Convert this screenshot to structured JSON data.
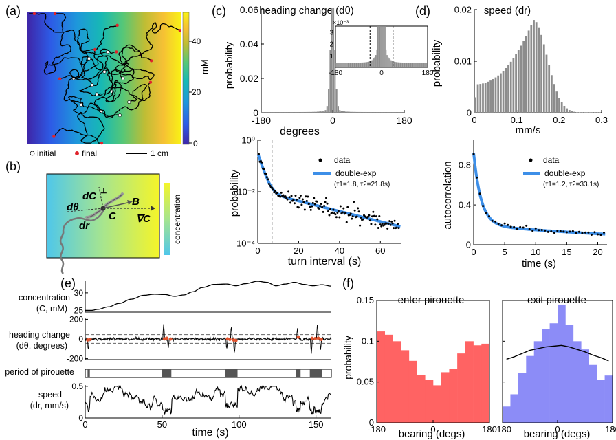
{
  "panel_letters": {
    "a": "(a)",
    "b": "(b)",
    "c": "(c)",
    "d": "(d)",
    "e": "(e)",
    "f": "(f)"
  },
  "colors": {
    "hist_gray": "#8c8c8c",
    "fit_blue": "#3d8fe8",
    "enter_red": "#ff6363",
    "exit_blue": "#8c8cf7",
    "pir_dot": "#e0522d"
  },
  "panel_a": {
    "colorbar_label": "mM",
    "colorbar_ticks": [
      "40",
      "20",
      "0"
    ],
    "legend_initial": "initial",
    "legend_final": "final",
    "scalebar_label": "1 cm",
    "colormap": "parula"
  },
  "panel_b": {
    "label_dC": "dC",
    "label_dC_sup": "⊥",
    "label_dtheta": "dθ",
    "label_dr": "dr",
    "label_C": "C",
    "label_B": "B",
    "label_gradC": "∇C",
    "colorbar_label": "concentration"
  },
  "chart_data": [
    {
      "id": "c_top",
      "type": "bar",
      "title": "heading change (dθ)",
      "xlabel": "degrees",
      "ylabel": "probability",
      "xticks": [
        "-180",
        "0",
        "180"
      ],
      "yticks": [
        "0",
        "0.02",
        "0.04",
        "0.06"
      ],
      "xlim": [
        -180,
        180
      ],
      "ylim": [
        0,
        0.06
      ],
      "inset": {
        "scale_label": "×10⁻³",
        "xticks": [
          "-180",
          "0",
          "180"
        ],
        "yticks": [
          "1",
          "2",
          "3"
        ],
        "xlim": [
          -180,
          180
        ],
        "ylim": [
          0,
          0.0035
        ],
        "dashed_lines": [
          -45,
          45
        ]
      }
    },
    {
      "id": "c_bottom",
      "type": "scatter",
      "xlabel": "turn interval (s)",
      "ylabel": "probability",
      "yscale": "log",
      "xticks": [
        "0",
        "20",
        "40",
        "60"
      ],
      "yticks": [
        "10⁰",
        "10⁻²",
        "10⁻⁴"
      ],
      "xlim": [
        0,
        70
      ],
      "ylim_log10": [
        -4,
        0
      ],
      "dashed_x": 7,
      "legend": [
        "data",
        "double-exp"
      ],
      "fit_params": "(τ1=1.8, τ2=21.8s)",
      "fit": {
        "a1": 0.6,
        "tau1": 1.8,
        "a2": 0.045,
        "tau2": 21.8
      }
    },
    {
      "id": "d_top",
      "type": "bar",
      "title": "speed (dr)",
      "xlabel": "mm/s",
      "ylabel": "probability",
      "xticks": [
        "0",
        "0.1",
        "0.2",
        "0.3"
      ],
      "yticks": [
        "0",
        "0.01",
        "0.02"
      ],
      "xlim": [
        0,
        0.3
      ],
      "ylim": [
        0,
        0.02
      ]
    },
    {
      "id": "d_bottom",
      "type": "scatter",
      "xlabel": "time (s)",
      "ylabel": "autocorrelation",
      "xticks": [
        "0",
        "5",
        "10",
        "15",
        "20"
      ],
      "yticks": [
        "0",
        "0.4",
        "0.8"
      ],
      "xlim": [
        0,
        21.5
      ],
      "ylim": [
        0,
        1.05
      ],
      "legend": [
        "data",
        "double-exp"
      ],
      "fit_params": "(τ1=1.2, τ2=33.1s)",
      "fit": {
        "a1": 0.72,
        "tau1": 1.2,
        "a2": 0.28,
        "tau2": 33.1
      }
    },
    {
      "id": "e",
      "type": "line",
      "xlabel": "time (s)",
      "xticks": [
        "0",
        "50",
        "100",
        "150"
      ],
      "xlim": [
        0,
        160
      ],
      "rows": [
        {
          "label": "concentration",
          "label2": "(C, mM)",
          "yticks": [
            "30",
            "25"
          ],
          "ylim": [
            24.5,
            33.5
          ]
        },
        {
          "label": "heading change",
          "label2": "(dθ, degrees)",
          "yticks": [
            "200",
            "0",
            "-200"
          ],
          "ylim": [
            -210,
            210
          ],
          "dashed": [
            45,
            -45
          ]
        },
        {
          "label": "period of pirouette",
          "periods": [
            [
              1.5,
              3
            ],
            [
              50,
              56
            ],
            [
              91,
              99
            ],
            [
              137,
              140
            ],
            [
              146,
              154
            ]
          ]
        },
        {
          "label": "speed",
          "label2": "(dr, mm/s)",
          "yticks": [
            "0.5",
            "0"
          ],
          "ylim": [
            0,
            0.52
          ]
        }
      ],
      "concentration_keypoints": [
        [
          0,
          25
        ],
        [
          4,
          25
        ],
        [
          8,
          25.3
        ],
        [
          15,
          26
        ],
        [
          22,
          27
        ],
        [
          30,
          28.2
        ],
        [
          38,
          29.3
        ],
        [
          45,
          29.6
        ],
        [
          52,
          29.5
        ],
        [
          58,
          29
        ],
        [
          64,
          29.4
        ],
        [
          70,
          30.3
        ],
        [
          76,
          31.5
        ],
        [
          84,
          32.4
        ],
        [
          92,
          32.5
        ],
        [
          98,
          32
        ],
        [
          104,
          32.6
        ],
        [
          112,
          33.3
        ],
        [
          118,
          33
        ],
        [
          124,
          32
        ],
        [
          130,
          32.5
        ],
        [
          136,
          33
        ],
        [
          142,
          32.4
        ],
        [
          148,
          32
        ],
        [
          154,
          32.3
        ],
        [
          160,
          31.9
        ]
      ]
    },
    {
      "id": "f_left",
      "type": "bar",
      "title": "enter pirouette",
      "xlabel": "bearing (degs)",
      "ylabel": "probability",
      "xticks": [
        "-180",
        "0",
        "180"
      ],
      "yticks": [
        "0",
        "0.05",
        "0.1",
        "0.15"
      ],
      "xlim": [
        -180,
        180
      ],
      "ylim": [
        0,
        0.15
      ],
      "values": [
        0.112,
        0.108,
        0.1,
        0.089,
        0.076,
        0.059,
        0.053,
        0.046,
        0.062,
        0.066,
        0.085,
        0.1,
        0.095,
        0.097
      ]
    },
    {
      "id": "f_right",
      "type": "bar",
      "title": "exit pirouette",
      "xlabel": "bearing (degs)",
      "xticks": [
        "-180",
        "0",
        "180"
      ],
      "yticks": [
        "0.15",
        "0.1",
        "0.05",
        "0"
      ],
      "xlim": [
        -180,
        180
      ],
      "ylim": [
        0,
        0.15
      ],
      "values": [
        0.02,
        0.035,
        0.061,
        0.082,
        0.1,
        0.115,
        0.122,
        0.145,
        0.12,
        0.1,
        0.09,
        0.071,
        0.053,
        0.058
      ],
      "line": [
        0.078,
        0.081,
        0.085,
        0.089,
        0.091,
        0.093,
        0.094,
        0.095,
        0.093,
        0.09,
        0.087,
        0.083,
        0.08,
        0.076
      ]
    }
  ]
}
